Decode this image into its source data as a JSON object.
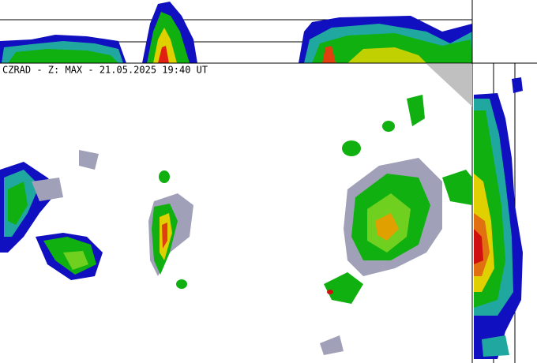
{
  "header": {
    "title": "CZRAD - Z: MAX - 21.05.2025 19:40 UT"
  }
}
